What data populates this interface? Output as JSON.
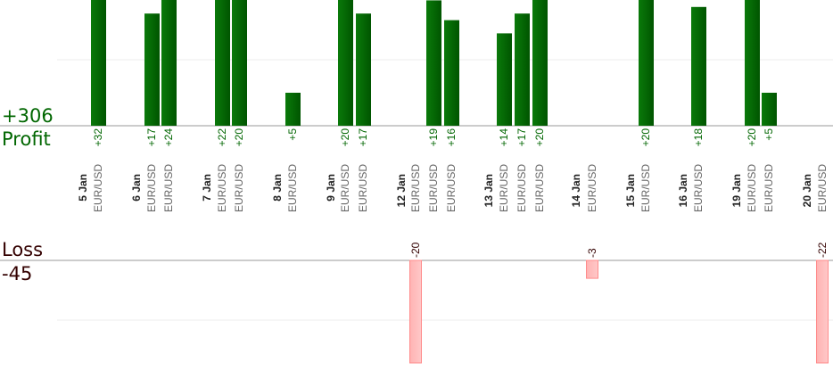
{
  "profit_panel": {
    "total": "+306",
    "title": "Profit"
  },
  "loss_panel": {
    "total": "-45",
    "title": "Loss"
  },
  "colors": {
    "profit_bar": "#005500",
    "loss_bar": "#ffb3b3",
    "profit_text": "#006600",
    "loss_text": "#330000",
    "date_text": "#222222",
    "pair_text": "#666666"
  },
  "chart_data": {
    "type": "bar",
    "dates": [
      "5 Jan",
      "6 Jan",
      "7 Jan",
      "8 Jan",
      "9 Jan",
      "12 Jan",
      "13 Jan",
      "14 Jan",
      "15 Jan",
      "16 Jan",
      "19 Jan",
      "20 Jan"
    ],
    "trades": [
      {
        "date": "5 Jan",
        "pair": "EUR/USD",
        "value": 32,
        "label": "+32"
      },
      {
        "date": "6 Jan",
        "pair": "EUR/USD",
        "value": 17,
        "label": "+17"
      },
      {
        "date": "6 Jan",
        "pair": "EUR/USD",
        "value": 24,
        "label": "+24"
      },
      {
        "date": "7 Jan",
        "pair": "EUR/USD",
        "value": 22,
        "label": "+22"
      },
      {
        "date": "7 Jan",
        "pair": "EUR/USD",
        "value": 20,
        "label": "+20"
      },
      {
        "date": "8 Jan",
        "pair": "EUR/USD",
        "value": 5,
        "label": "+5"
      },
      {
        "date": "9 Jan",
        "pair": "EUR/USD",
        "value": 20,
        "label": "+20"
      },
      {
        "date": "9 Jan",
        "pair": "EUR/USD",
        "value": 17,
        "label": "+17"
      },
      {
        "date": "12 Jan",
        "pair": "EUR/USD",
        "value": -20,
        "label": "-20"
      },
      {
        "date": "12 Jan",
        "pair": "EUR/USD",
        "value": 19,
        "label": "+19"
      },
      {
        "date": "12 Jan",
        "pair": "EUR/USD",
        "value": 16,
        "label": "+16"
      },
      {
        "date": "13 Jan",
        "pair": "EUR/USD",
        "value": 14,
        "label": "+14"
      },
      {
        "date": "13 Jan",
        "pair": "EUR/USD",
        "value": 17,
        "label": "+17"
      },
      {
        "date": "13 Jan",
        "pair": "EUR/USD",
        "value": 20,
        "label": "+20"
      },
      {
        "date": "14 Jan",
        "pair": "EUR/USD",
        "value": -3,
        "label": "-3"
      },
      {
        "date": "15 Jan",
        "pair": "EUR/USD",
        "value": 20,
        "label": "+20"
      },
      {
        "date": "16 Jan",
        "pair": "EUR/USD",
        "value": 18,
        "label": "+18"
      },
      {
        "date": "19 Jan",
        "pair": "EUR/USD",
        "value": 20,
        "label": "+20"
      },
      {
        "date": "19 Jan",
        "pair": "EUR/USD",
        "value": 5,
        "label": "+5"
      },
      {
        "date": "20 Jan",
        "pair": "EUR/USD",
        "value": -22,
        "label": "-22"
      }
    ],
    "profit_ylim": [
      0,
      15
    ],
    "loss_ylim": [
      -20,
      0
    ],
    "grid": true,
    "legend": "none"
  }
}
